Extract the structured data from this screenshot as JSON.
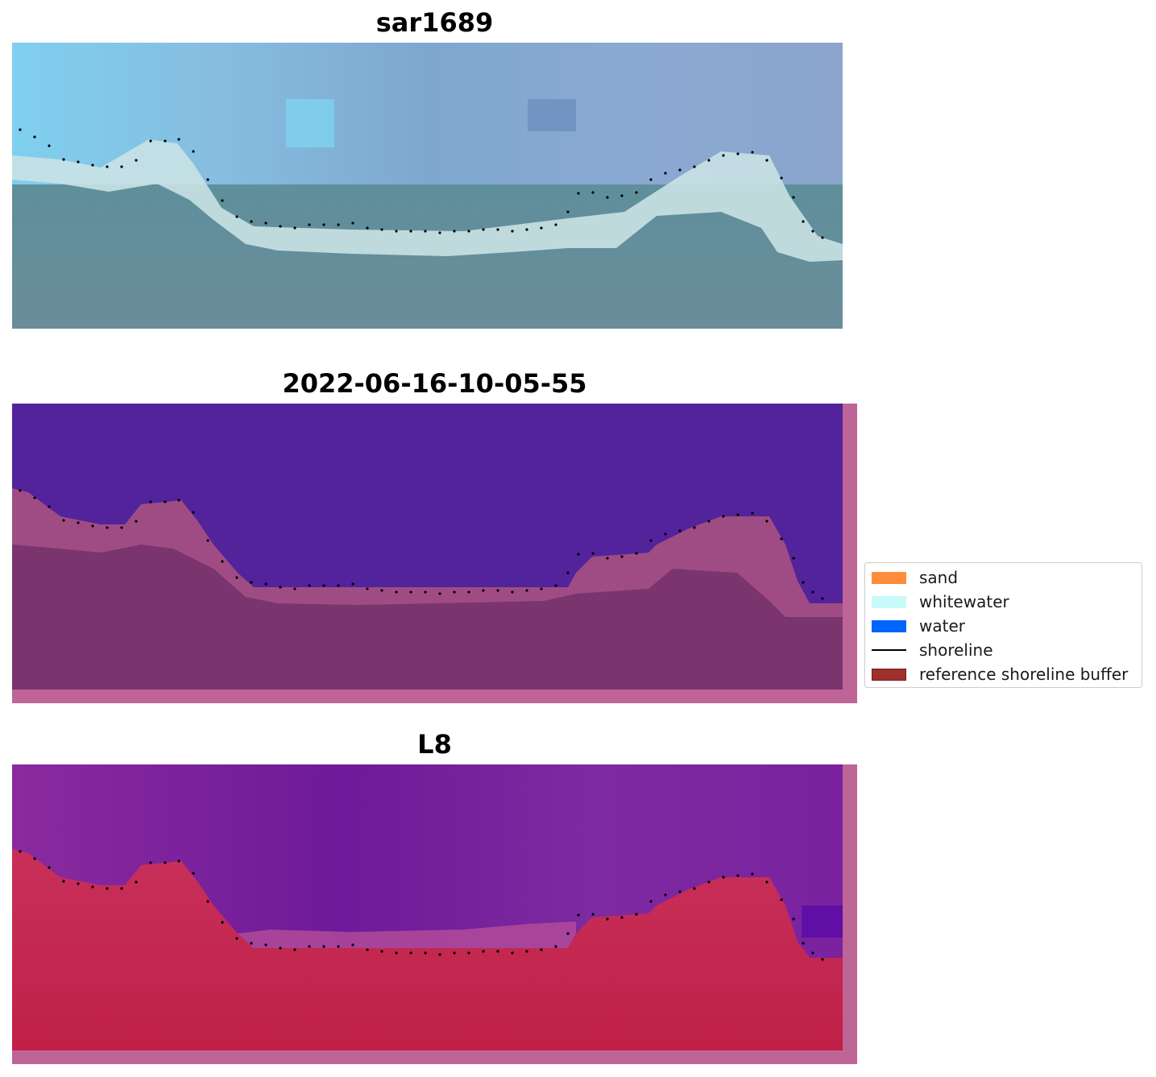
{
  "panels": [
    {
      "title": "sar1689",
      "kind": "rgb"
    },
    {
      "title": "2022-06-16-10-05-55",
      "kind": "classified"
    },
    {
      "title": "L8",
      "kind": "index"
    }
  ],
  "legend": {
    "items": [
      {
        "label": "sand",
        "color": "#ff8c3a",
        "type": "patch"
      },
      {
        "label": "whitewater",
        "color": "#c8fafa",
        "type": "patch"
      },
      {
        "label": "water",
        "color": "#0064ff",
        "type": "patch"
      },
      {
        "label": "shoreline",
        "color": "#000000",
        "type": "line"
      },
      {
        "label": "reference shoreline buffer",
        "color": "#a0302c",
        "type": "patch"
      }
    ]
  },
  "colors": {
    "buffer_overlay": "#be6496",
    "water_class": "#52239a",
    "shoreline_dots": "#000000"
  }
}
